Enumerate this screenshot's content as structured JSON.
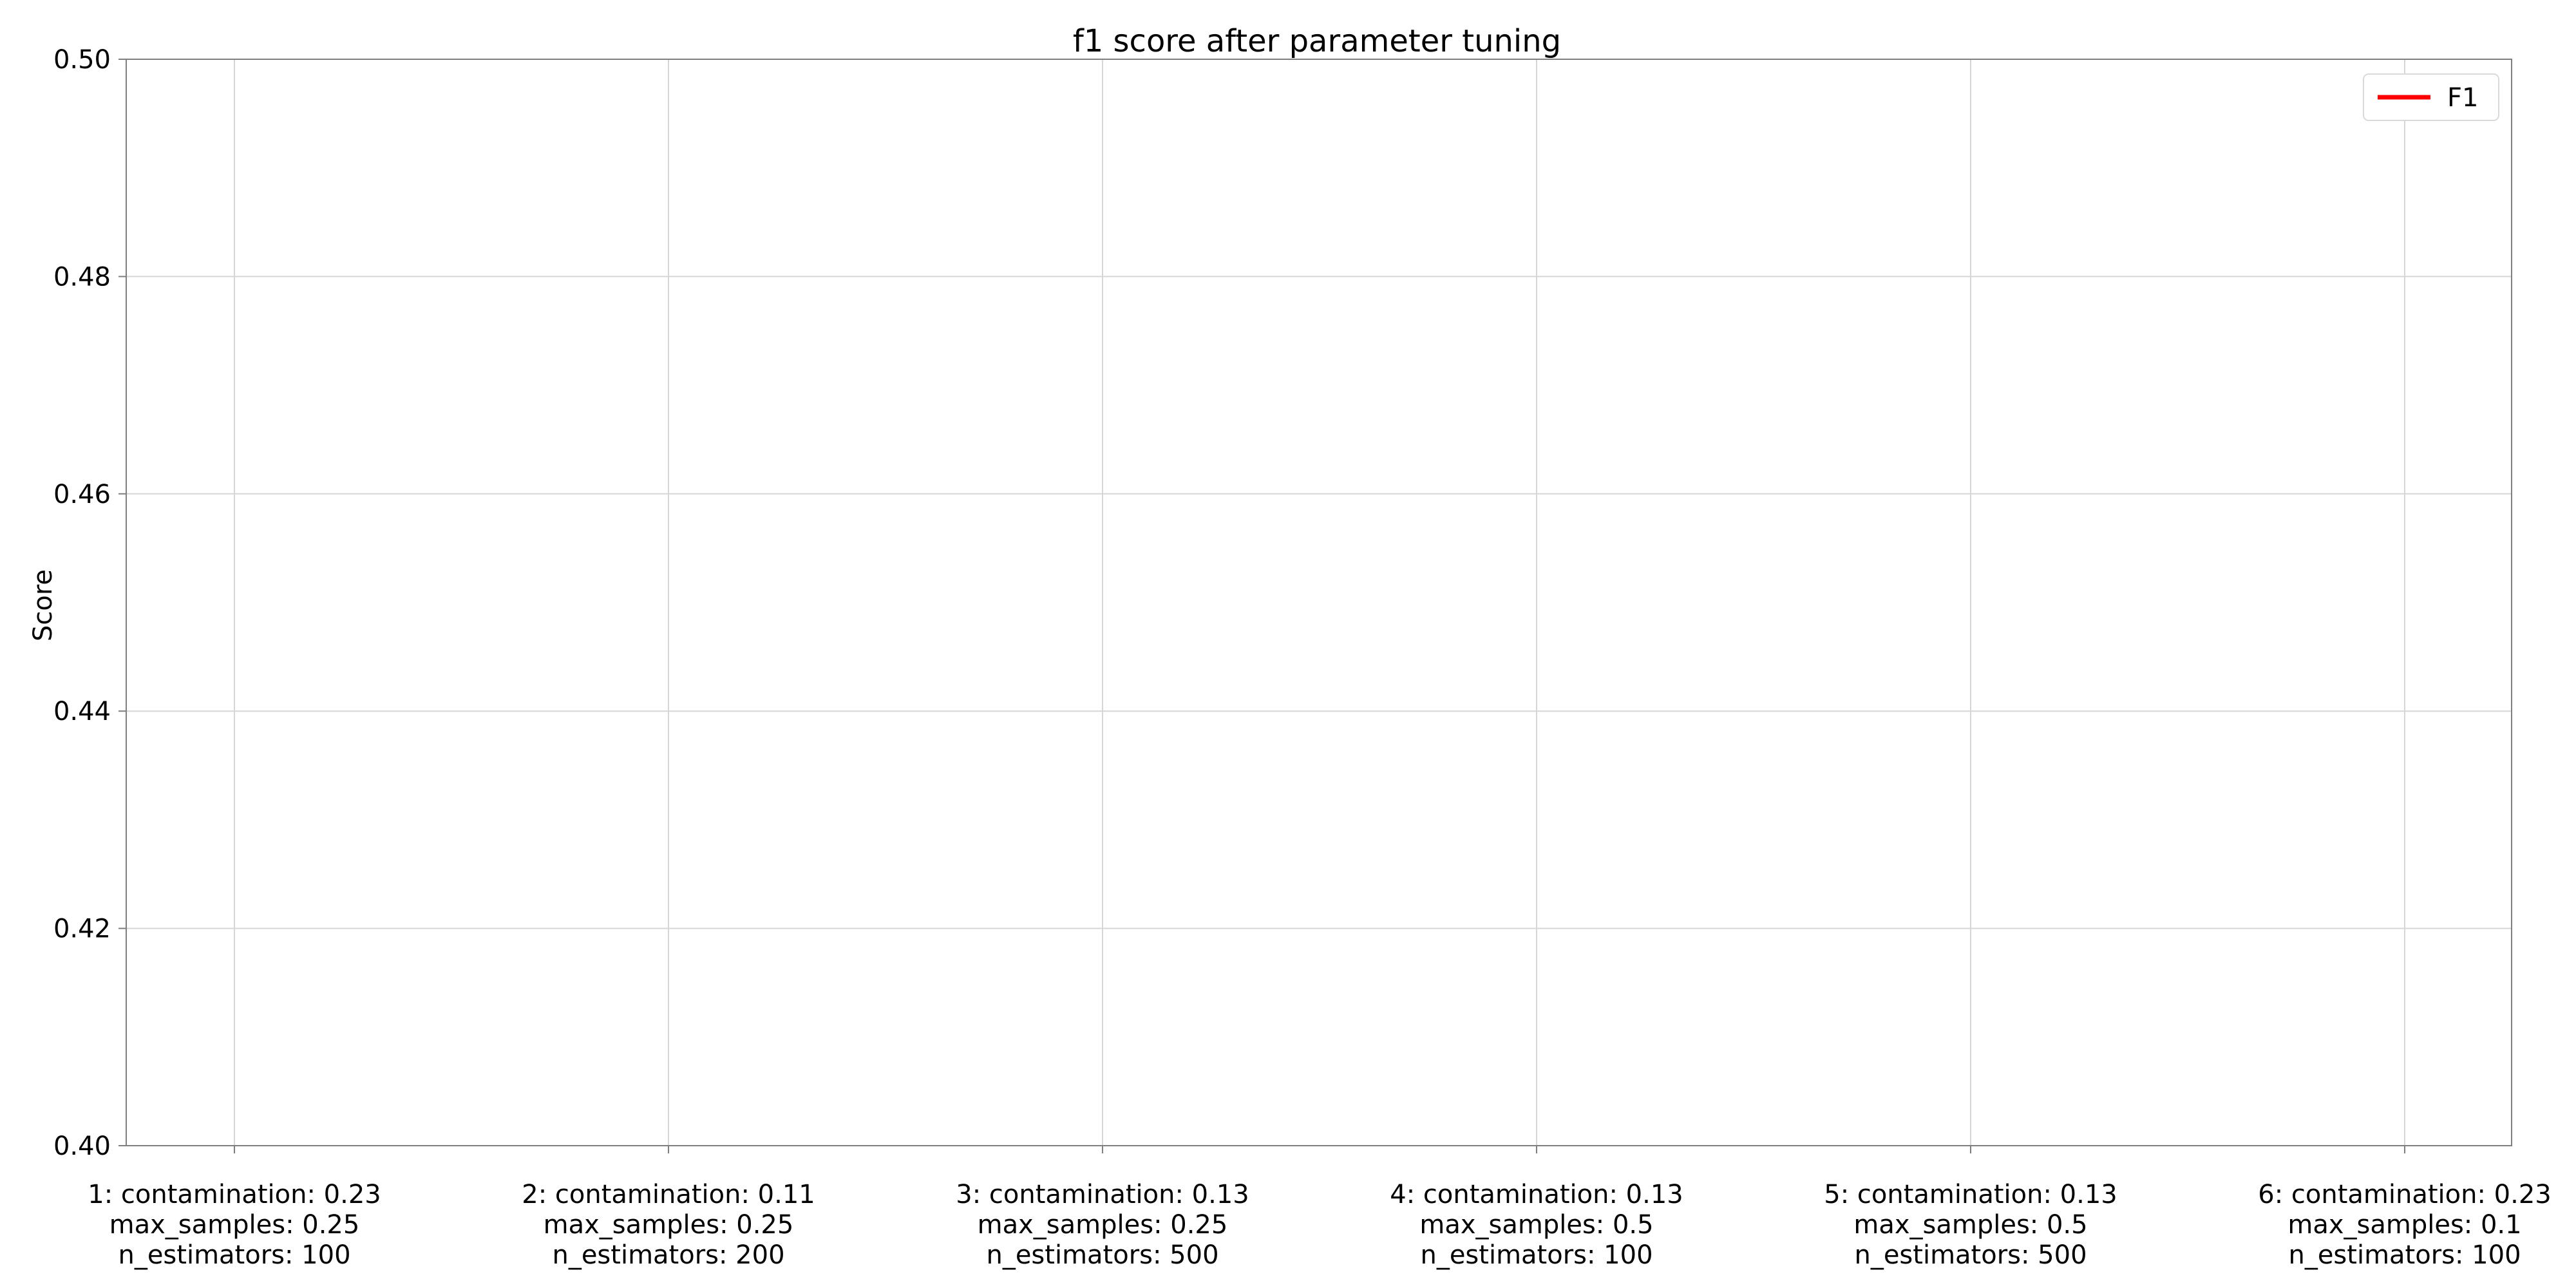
{
  "chart_data": {
    "type": "line",
    "title": "f1 score after parameter tuning",
    "xlabel": "",
    "ylabel": "Score",
    "categories": [
      [
        "1: contamination: 0.23",
        "max_samples: 0.25",
        "n_estimators: 100"
      ],
      [
        "2: contamination: 0.11",
        "max_samples: 0.25",
        "n_estimators: 200"
      ],
      [
        "3: contamination: 0.13",
        "max_samples: 0.25",
        "n_estimators: 500"
      ],
      [
        "4: contamination: 0.13",
        "max_samples: 0.5",
        "n_estimators: 100"
      ],
      [
        "5: contamination: 0.13",
        "max_samples: 0.5",
        "n_estimators: 500"
      ],
      [
        "6: contamination: 0.23",
        "max_samples: 0.1",
        "n_estimators: 100"
      ]
    ],
    "yticks": [
      "0.40",
      "0.42",
      "0.44",
      "0.46",
      "0.48",
      "0.50"
    ],
    "ylim": [
      0.4,
      0.5
    ],
    "grid": true,
    "legend": "top-right",
    "series": [
      {
        "name": "F1",
        "color": "#ff0000",
        "values": [
          null,
          null,
          null,
          null,
          null,
          null
        ]
      }
    ]
  }
}
